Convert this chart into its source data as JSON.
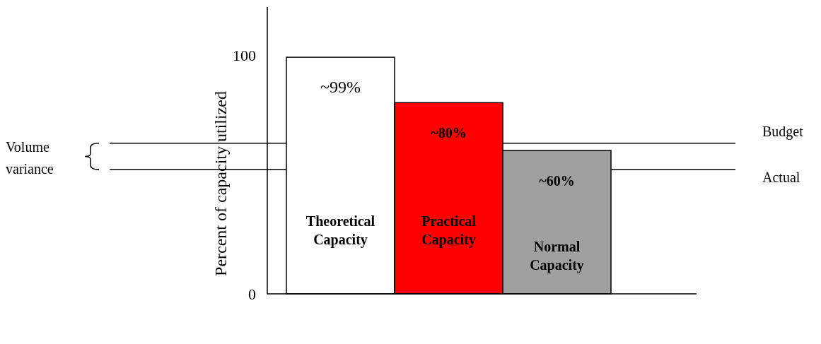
{
  "chart_data": {
    "type": "bar",
    "ylabel": "Percent of capacity utilized",
    "categories": [
      "Theoretical Capacity",
      "Practical Capacity",
      "Normal Capacity"
    ],
    "values": [
      99,
      80,
      60
    ],
    "colors": [
      "#ffffff",
      "#ff0000",
      "#a0a0a0"
    ],
    "value_labels": [
      "~99%",
      "~80%",
      "~60%"
    ],
    "ylim": [
      0,
      120
    ],
    "yticks": [
      0,
      100
    ],
    "ref_lines": [
      {
        "axis": "y",
        "value": 63,
        "label": "Budget"
      },
      {
        "axis": "y",
        "value": 52,
        "label": "Actual"
      }
    ],
    "annotations": [
      "Volume variance"
    ]
  }
}
